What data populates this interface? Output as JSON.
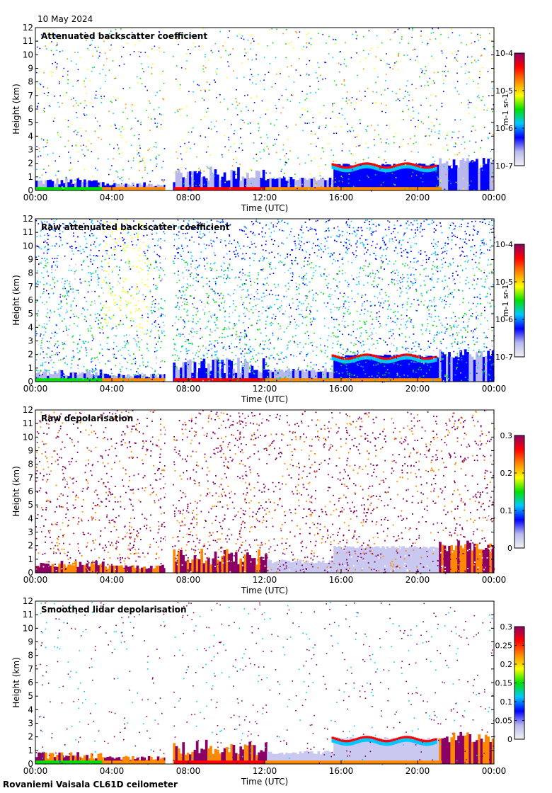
{
  "date_label": "10 May 2024",
  "footer_label": "Rovaniemi Vaisala CL61D ceilometer",
  "chart_data": [
    {
      "type": "heatmap",
      "title": "Attenuated backscatter coefficient",
      "xlabel": "Time (UTC)",
      "ylabel": "Height (km)",
      "x_ticks": [
        "00:00",
        "04:00",
        "08:00",
        "12:00",
        "16:00",
        "20:00",
        "00:00"
      ],
      "y_ticks": [
        0,
        1,
        2,
        3,
        4,
        5,
        6,
        7,
        8,
        9,
        10,
        11,
        12
      ],
      "ylim": [
        0,
        12
      ],
      "colorbar": {
        "scale": "log",
        "ticks": [
          "10-7",
          "10-6",
          "10-5",
          "10-4"
        ],
        "label": "m-1 sr-1",
        "colors": [
          "#f2f2f2",
          "#b8b8ee",
          "#0000ff",
          "#00c8ff",
          "#00e000",
          "#ffff00",
          "#ff8800",
          "#ff0000",
          "#8b0064"
        ]
      },
      "data_gap_hours": [
        6.8,
        7.15
      ],
      "features": [
        {
          "desc": "boundary layer",
          "t_start": 0,
          "t_end": 24,
          "h_top_km": 0.4
        },
        {
          "desc": "cloud layer",
          "t_start": 15.5,
          "t_end": 21,
          "h_km": 1.9
        }
      ]
    },
    {
      "type": "heatmap",
      "title": "Raw attenuated backscatter coefficient",
      "xlabel": "Time (UTC)",
      "ylabel": "Height (km)",
      "x_ticks": [
        "00:00",
        "04:00",
        "08:00",
        "12:00",
        "16:00",
        "20:00",
        "00:00"
      ],
      "y_ticks": [
        0,
        1,
        2,
        3,
        4,
        5,
        6,
        7,
        8,
        9,
        10,
        11,
        12
      ],
      "ylim": [
        0,
        12
      ],
      "colorbar": {
        "scale": "log",
        "ticks": [
          "10-7",
          "10-6",
          "10-5",
          "10-4"
        ],
        "label": "m-1 sr-1",
        "colors": [
          "#f2f2f2",
          "#b8b8ee",
          "#0000ff",
          "#00c8ff",
          "#00e000",
          "#ffff00",
          "#ff8800",
          "#ff0000",
          "#8b0064"
        ]
      },
      "data_gap_hours": [
        6.8,
        7.15
      ]
    },
    {
      "type": "heatmap",
      "title": "Raw depolarisation",
      "xlabel": "Time (UTC)",
      "ylabel": "Height (km)",
      "x_ticks": [
        "00:00",
        "04:00",
        "08:00",
        "12:00",
        "16:00",
        "20:00",
        "00:00"
      ],
      "y_ticks": [
        0,
        1,
        2,
        3,
        4,
        5,
        6,
        7,
        8,
        9,
        10,
        11,
        12
      ],
      "ylim": [
        0,
        12
      ],
      "colorbar": {
        "scale": "linear",
        "range": [
          0,
          0.3
        ],
        "ticks": [
          "0",
          "0.1",
          "0.2",
          "0.3"
        ],
        "colors": [
          "#f2f2f2",
          "#b8b8ee",
          "#0000ff",
          "#00c8ff",
          "#00e000",
          "#ffff00",
          "#ff8800",
          "#ff0000",
          "#8b0064"
        ]
      },
      "data_gap_hours": [
        6.8,
        7.15
      ]
    },
    {
      "type": "heatmap",
      "title": "Smoothed lidar depolarisation",
      "xlabel": "Time (UTC)",
      "ylabel": "Height (km)",
      "x_ticks": [
        "00:00",
        "04:00",
        "08:00",
        "12:00",
        "16:00",
        "20:00",
        "00:00"
      ],
      "y_ticks": [
        0,
        1,
        2,
        3,
        4,
        5,
        6,
        7,
        8,
        9,
        10,
        11,
        12
      ],
      "ylim": [
        0,
        12
      ],
      "colorbar": {
        "scale": "linear",
        "range": [
          0,
          0.3
        ],
        "ticks": [
          "0",
          "0.05",
          "0.1",
          "0.15",
          "0.2",
          "0.25",
          "0.3"
        ],
        "colors": [
          "#f2f2f2",
          "#b8b8ee",
          "#0000ff",
          "#00c8ff",
          "#00e000",
          "#ffff00",
          "#ff8800",
          "#ff0000",
          "#8b0064"
        ]
      },
      "data_gap_hours": [
        6.8,
        7.15
      ]
    }
  ]
}
